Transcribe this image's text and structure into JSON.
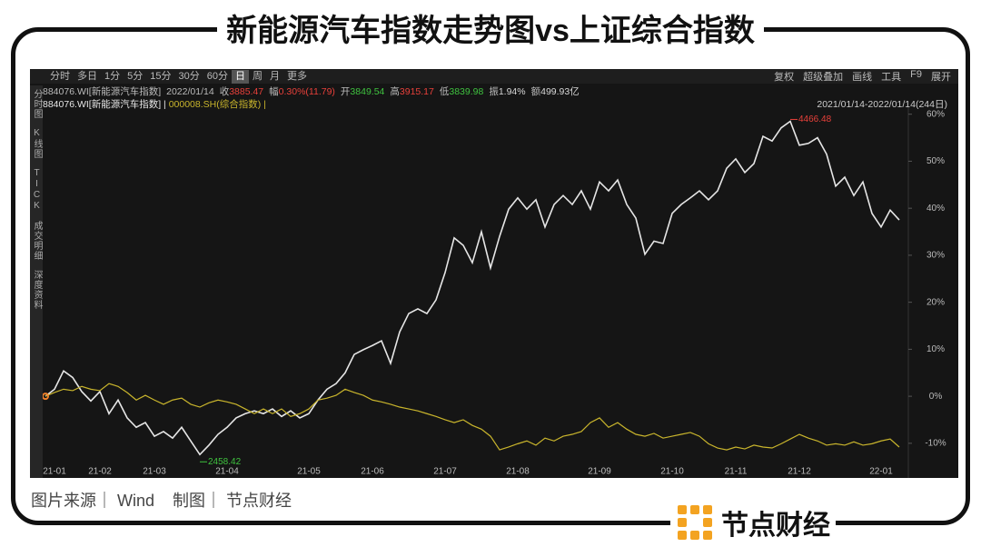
{
  "header": {
    "title": "新能源汽车指数走势图vs上证综合指数"
  },
  "toolbar": {
    "periods": [
      "分时",
      "多日",
      "1分",
      "5分",
      "15分",
      "30分",
      "60分",
      "日",
      "周",
      "月",
      "更多"
    ],
    "active": "日",
    "tools": [
      "复权",
      "超级叠加",
      "画线",
      "工具",
      "F9",
      "展开"
    ]
  },
  "side_tabs": [
    "分时图",
    "K线图",
    "TICK",
    "成交明细",
    "深度资料"
  ],
  "quote": {
    "code": "884076.WI[新能源汽车指数]",
    "date": "2022/01/14",
    "items": [
      {
        "label": "收",
        "value": "3885.47",
        "color": "#e8403a"
      },
      {
        "label": "幅",
        "value": "0.30%(11.79)",
        "color": "#e8403a"
      },
      {
        "label": "开",
        "value": "3849.54",
        "color": "#3fc23f"
      },
      {
        "label": "高",
        "value": "3915.17",
        "color": "#e8403a"
      },
      {
        "label": "低",
        "value": "3839.98",
        "color": "#3fc23f"
      },
      {
        "label": "振",
        "value": "1.94%",
        "color": "#d8d8d8"
      },
      {
        "label": "额",
        "value": "499.93亿",
        "color": "#d8d8d8"
      }
    ]
  },
  "chart_data": {
    "type": "line",
    "date_range": "2021/01/14-2022/01/14(244日)",
    "categories": [
      null,
      "21-01",
      null,
      null,
      null,
      null,
      "21-02",
      null,
      null,
      null,
      null,
      null,
      "21-03",
      null,
      null,
      null,
      null,
      null,
      null,
      null,
      "21-04",
      null,
      null,
      null,
      null,
      null,
      null,
      null,
      null,
      "21-05",
      null,
      null,
      null,
      null,
      null,
      null,
      "21-06",
      null,
      null,
      null,
      null,
      null,
      null,
      null,
      "21-07",
      null,
      null,
      null,
      null,
      null,
      null,
      null,
      "21-08",
      null,
      null,
      null,
      null,
      null,
      null,
      null,
      null,
      "21-09",
      null,
      null,
      null,
      null,
      null,
      null,
      null,
      "21-10",
      null,
      null,
      null,
      null,
      null,
      null,
      "21-11",
      null,
      null,
      null,
      null,
      null,
      null,
      "21-12",
      null,
      null,
      null,
      null,
      null,
      null,
      null,
      null,
      "22-01",
      null,
      null
    ],
    "series": [
      {
        "name": "884076.WI[新能源汽车指数]",
        "color": "#e6e6e6",
        "values": [
          0,
          1.5,
          5.4,
          4,
          1,
          -1,
          1,
          -3.7,
          -0.8,
          -4.6,
          -6.6,
          -5.6,
          -8.5,
          -7.5,
          -8.9,
          -6.6,
          -9.5,
          -12.4,
          -10.4,
          -8.1,
          -6.6,
          -4.6,
          -3.7,
          -3.1,
          -3.7,
          -2.7,
          -4.3,
          -3.1,
          -4.6,
          -3.7,
          -0.8,
          1.5,
          2.7,
          5,
          8.9,
          9.9,
          10.8,
          11.8,
          7,
          13.7,
          17.6,
          18.6,
          17.6,
          20.5,
          26.3,
          33.7,
          32.1,
          28.4,
          35,
          27.3,
          34,
          39.8,
          42.2,
          39.8,
          41.8,
          36,
          40.8,
          42.7,
          40.8,
          43.7,
          39.8,
          45.6,
          43.7,
          46,
          40.8,
          37.9,
          30.2,
          33,
          32.5,
          38.9,
          40.8,
          42.2,
          43.7,
          41.8,
          43.7,
          48.5,
          50.5,
          47.6,
          49.5,
          55.3,
          54.3,
          57.1,
          58.5,
          53.4,
          53.8,
          55,
          51.5,
          44.7,
          46.6,
          42.7,
          45.6,
          38.9,
          36,
          39.6,
          37.5
        ]
      },
      {
        "name": "000008.SH(综合指数)",
        "color": "#c9b52c",
        "values": [
          0,
          0.8,
          1.5,
          1.2,
          2.1,
          1.5,
          1.2,
          2.7,
          2.1,
          0.8,
          -0.8,
          0.2,
          -0.8,
          -1.7,
          -0.8,
          -0.4,
          -1.7,
          -2.3,
          -1.4,
          -0.8,
          -1.2,
          -1.7,
          -2.7,
          -3.7,
          -2.7,
          -3.7,
          -2.7,
          -4.3,
          -3.7,
          -2.7,
          -0.8,
          -0.4,
          0.2,
          1.5,
          0.8,
          0.2,
          -0.8,
          -1.2,
          -1.7,
          -2.3,
          -2.7,
          -3.1,
          -3.7,
          -4.3,
          -5,
          -5.6,
          -5,
          -6.2,
          -7,
          -8.5,
          -11.4,
          -10.8,
          -10.1,
          -9.5,
          -10.4,
          -8.9,
          -9.5,
          -8.5,
          -8.1,
          -7.5,
          -5.6,
          -4.6,
          -6.6,
          -5.6,
          -7,
          -8.1,
          -8.5,
          -7.9,
          -8.9,
          -8.5,
          -8.1,
          -7.7,
          -8.5,
          -10.1,
          -11,
          -11.4,
          -10.8,
          -11.2,
          -10.4,
          -10.8,
          -11,
          -10.1,
          -9.1,
          -8.1,
          -8.9,
          -9.5,
          -10.4,
          -10.1,
          -10.4,
          -9.7,
          -10.4,
          -10.1,
          -9.5,
          -9.1,
          -10.8
        ]
      }
    ],
    "ylim": [
      -16.6,
      61.1
    ],
    "yticks": [
      {
        "value": -10,
        "label": "-10%"
      },
      {
        "value": 0,
        "label": "0%"
      },
      {
        "value": 10,
        "label": "10%"
      },
      {
        "value": 20,
        "label": "20%"
      },
      {
        "value": 30,
        "label": "30%"
      },
      {
        "value": 40,
        "label": "40%"
      },
      {
        "value": 50,
        "label": "50%"
      },
      {
        "value": 60,
        "label": "60%"
      }
    ],
    "grid": false,
    "annotations": [
      {
        "text": "4466.48",
        "color": "#e8403a"
      },
      {
        "text": "2458.42",
        "color": "#3fc23f"
      }
    ]
  },
  "footer": {
    "source": "图片来源｜ Wind    制图｜ 节点财经",
    "brand": "节点财经"
  }
}
